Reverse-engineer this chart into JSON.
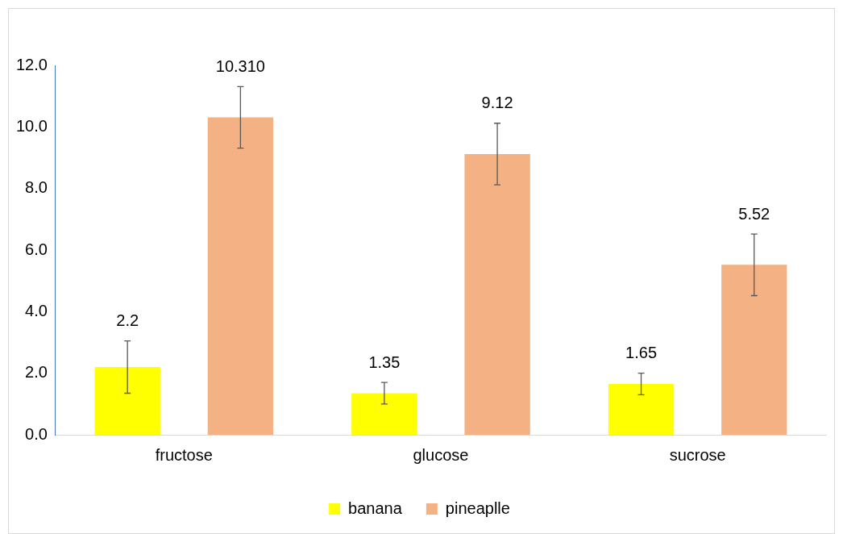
{
  "chart_data": {
    "type": "bar",
    "categories": [
      "fructose",
      "glucose",
      "sucrose"
    ],
    "series": [
      {
        "name": "banana",
        "color": "#ffff00",
        "values": [
          2.2,
          1.35,
          1.65
        ],
        "errors": [
          0.85,
          0.35,
          0.35
        ],
        "value_labels": [
          "2.2",
          "1.35",
          "1.65"
        ]
      },
      {
        "name": "pineaplle",
        "color": "#f4b183",
        "values": [
          10.31,
          9.12,
          5.52
        ],
        "errors": [
          1.0,
          1.0,
          1.0
        ],
        "value_labels": [
          "10.310",
          "9.12",
          "5.52"
        ]
      }
    ],
    "ylim": [
      0,
      12
    ],
    "yticks": [
      {
        "value": 0,
        "label": "0.0"
      },
      {
        "value": 2,
        "label": "2.0"
      },
      {
        "value": 4,
        "label": "4.0"
      },
      {
        "value": 6,
        "label": "6.0"
      },
      {
        "value": 8,
        "label": "8.0"
      },
      {
        "value": 10,
        "label": "10.0"
      },
      {
        "value": 12,
        "label": "12.0"
      }
    ],
    "grid": false,
    "legend": "bottom"
  }
}
